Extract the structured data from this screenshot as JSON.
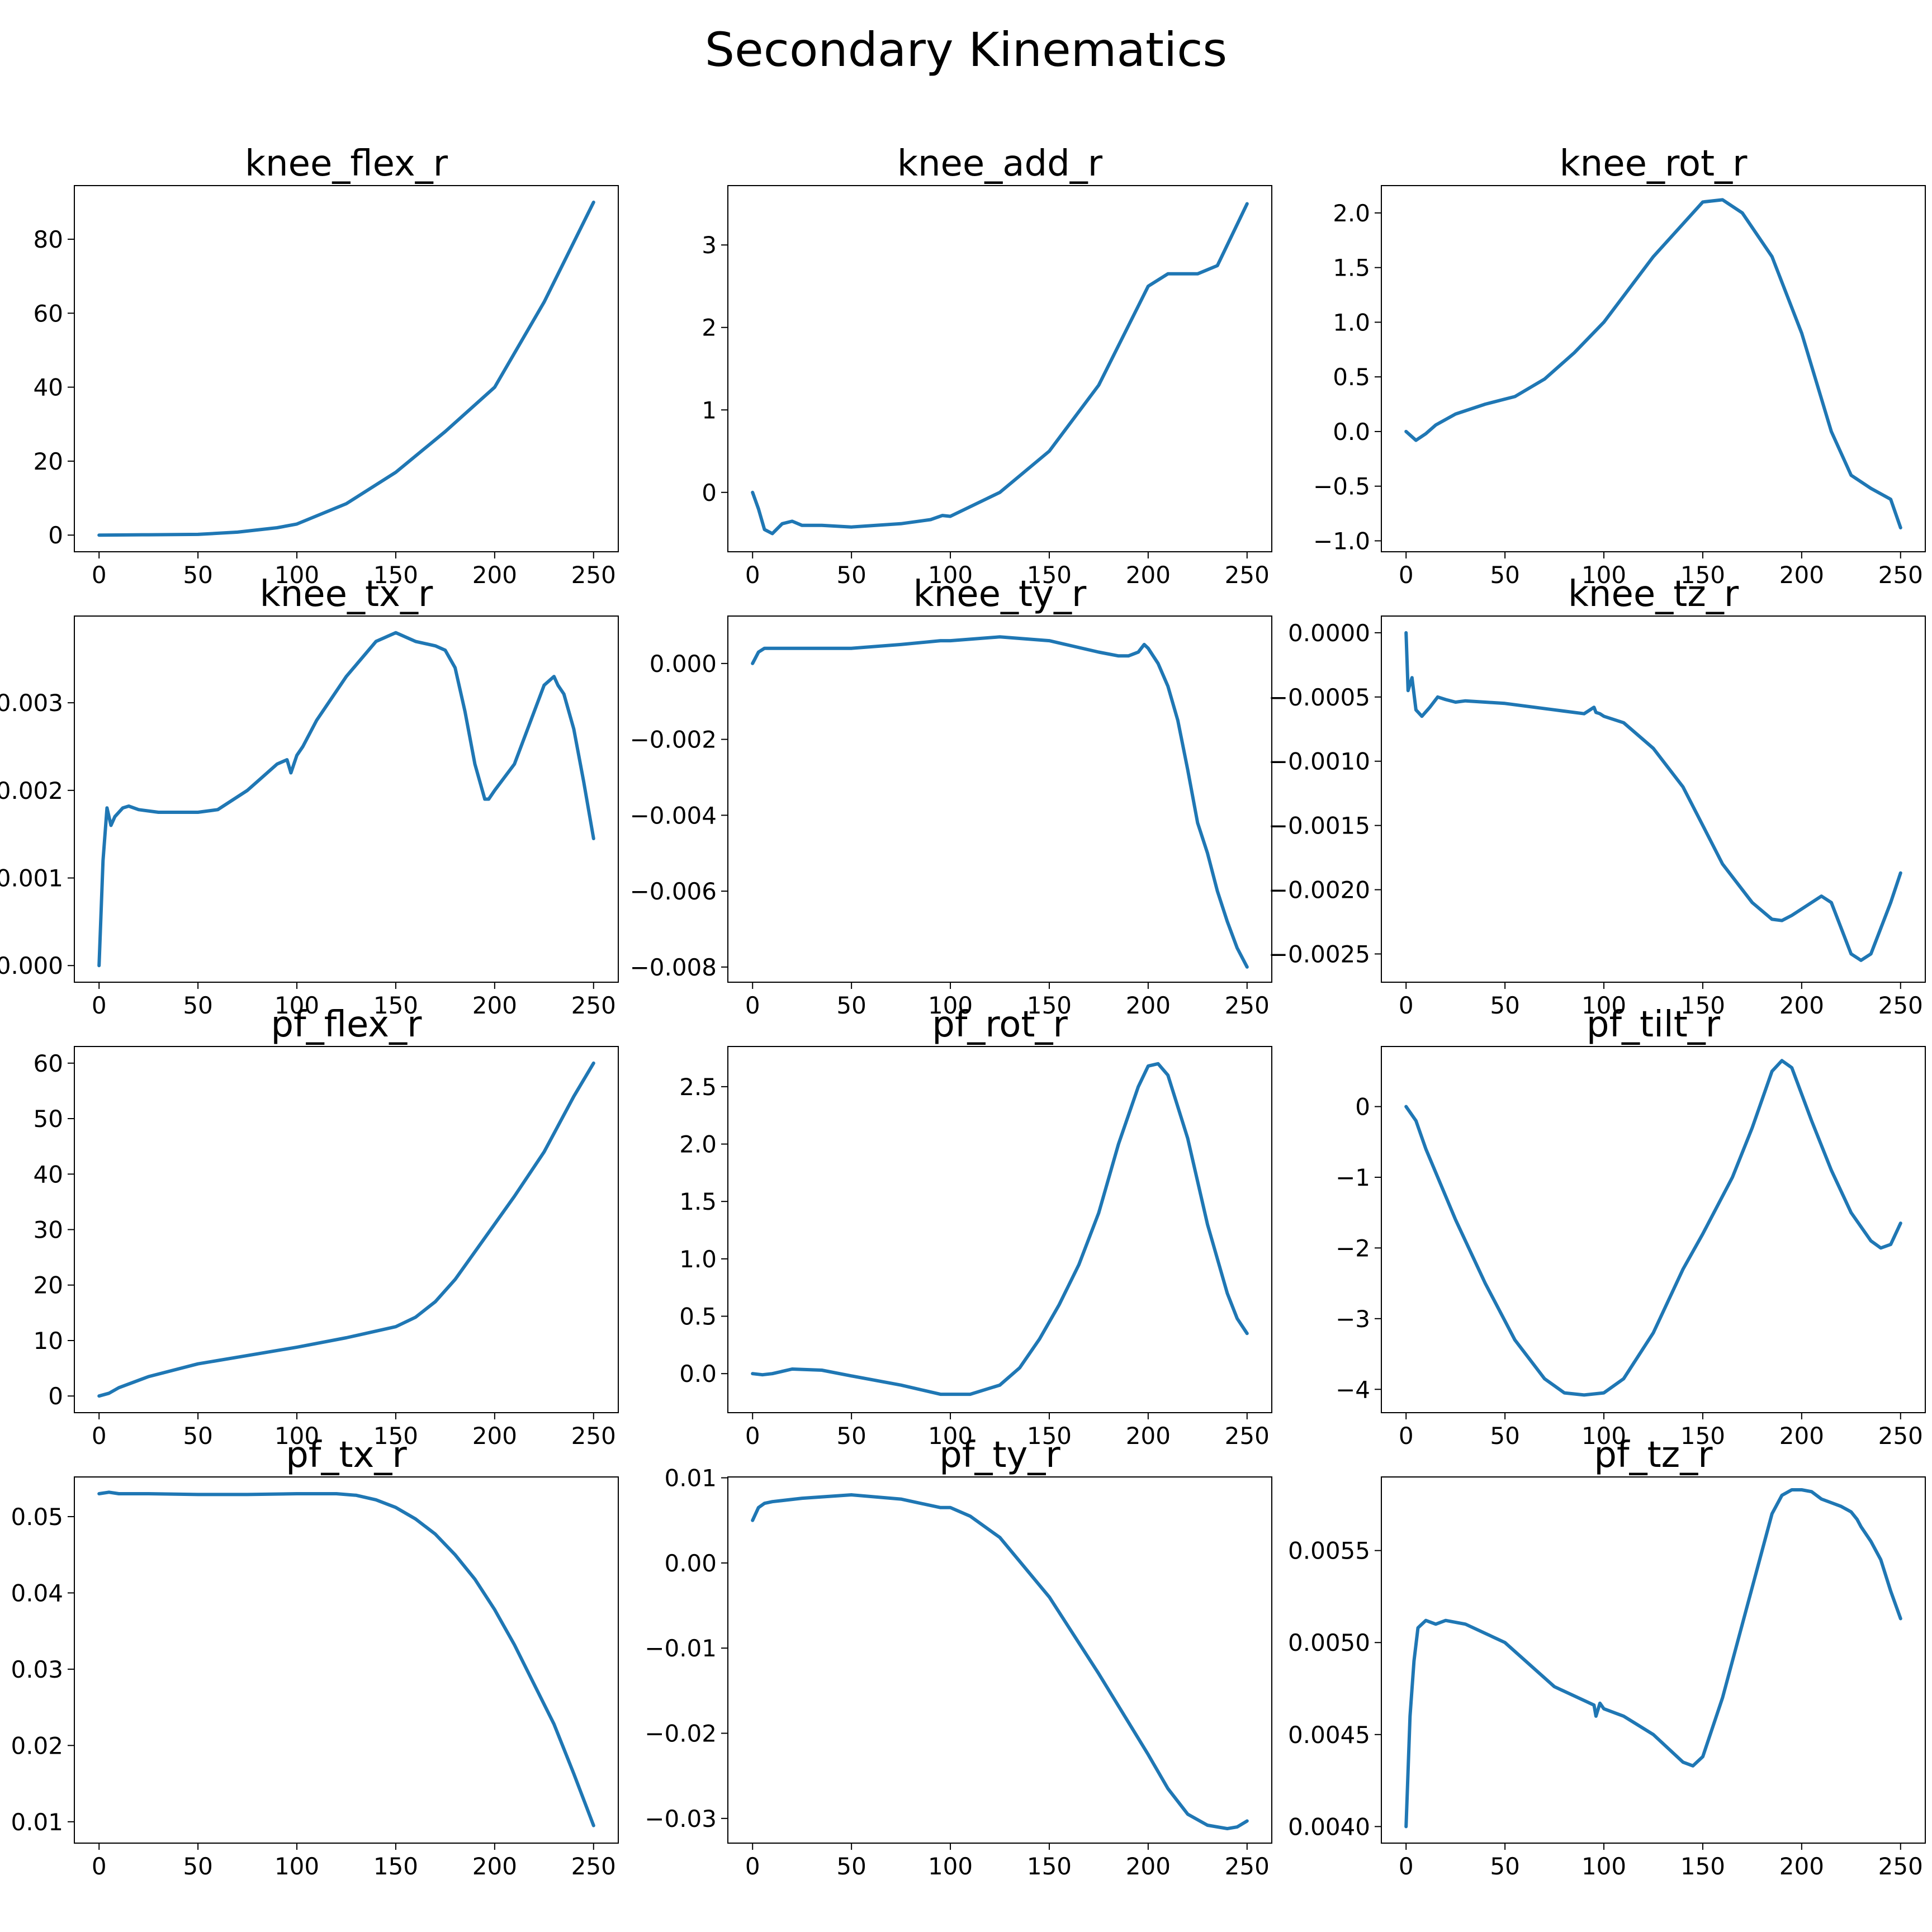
{
  "figure_title": "Secondary Kinematics",
  "line_color": "#1f77b4",
  "chart_data": [
    {
      "type": "line",
      "title": "knee_flex_r",
      "xlabel": "",
      "ylabel": "",
      "xlim": [
        -12.5,
        262.5
      ],
      "ylim": [
        -4.5,
        94.5
      ],
      "xticks": [
        0,
        50,
        100,
        150,
        200,
        250
      ],
      "xtick_labels": [
        "0",
        "50",
        "100",
        "150",
        "200",
        "250"
      ],
      "yticks": [
        0,
        20,
        40,
        60,
        80
      ],
      "ytick_labels": [
        "0",
        "20",
        "40",
        "60",
        "80"
      ],
      "series": [
        {
          "x": [
            0,
            25,
            50,
            70,
            90,
            100,
            125,
            150,
            175,
            200,
            225,
            250
          ],
          "y": [
            0,
            0.1,
            0.2,
            0.8,
            2,
            3,
            8.5,
            17,
            28,
            40,
            63,
            90
          ]
        }
      ]
    },
    {
      "type": "line",
      "title": "knee_add_r",
      "xlabel": "",
      "ylabel": "",
      "xlim": [
        -12.5,
        262.5
      ],
      "ylim": [
        -0.72,
        3.72
      ],
      "xticks": [
        0,
        50,
        100,
        150,
        200,
        250
      ],
      "xtick_labels": [
        "0",
        "50",
        "100",
        "150",
        "200",
        "250"
      ],
      "yticks": [
        0,
        1,
        2,
        3
      ],
      "ytick_labels": [
        "0",
        "1",
        "2",
        "3"
      ],
      "series": [
        {
          "x": [
            0,
            3,
            6,
            10,
            15,
            20,
            25,
            35,
            50,
            75,
            90,
            96,
            100,
            125,
            150,
            175,
            200,
            210,
            225,
            235,
            240,
            250
          ],
          "y": [
            0,
            -0.2,
            -0.45,
            -0.5,
            -0.38,
            -0.35,
            -0.4,
            -0.4,
            -0.42,
            -0.38,
            -0.33,
            -0.28,
            -0.29,
            0,
            0.5,
            1.3,
            2.5,
            2.65,
            2.65,
            2.75,
            3.0,
            3.5
          ]
        }
      ]
    },
    {
      "type": "line",
      "title": "knee_rot_r",
      "xlabel": "",
      "ylabel": "",
      "xlim": [
        -12.5,
        262.5
      ],
      "ylim": [
        -1.1,
        2.25
      ],
      "xticks": [
        0,
        50,
        100,
        150,
        200,
        250
      ],
      "xtick_labels": [
        "0",
        "50",
        "100",
        "150",
        "200",
        "250"
      ],
      "yticks": [
        -1.0,
        -0.5,
        0.0,
        0.5,
        1.0,
        1.5,
        2.0
      ],
      "ytick_labels": [
        "−1.0",
        "−0.5",
        "0.0",
        "0.5",
        "1.0",
        "1.5",
        "2.0"
      ],
      "series": [
        {
          "x": [
            0,
            5,
            10,
            15,
            25,
            40,
            55,
            70,
            85,
            100,
            125,
            150,
            160,
            170,
            185,
            200,
            215,
            225,
            235,
            245,
            250
          ],
          "y": [
            0,
            -0.08,
            -0.02,
            0.06,
            0.16,
            0.25,
            0.32,
            0.48,
            0.72,
            1.0,
            1.6,
            2.1,
            2.12,
            2.0,
            1.6,
            0.9,
            0.0,
            -0.4,
            -0.52,
            -0.62,
            -0.88
          ]
        }
      ]
    },
    {
      "type": "line",
      "title": "knee_tx_r",
      "xlabel": "",
      "ylabel": "",
      "xlim": [
        -12.5,
        262.5
      ],
      "ylim": [
        -0.00019,
        0.00399
      ],
      "xticks": [
        0,
        50,
        100,
        150,
        200,
        250
      ],
      "xtick_labels": [
        "0",
        "50",
        "100",
        "150",
        "200",
        "250"
      ],
      "yticks": [
        0,
        0.001,
        0.002,
        0.003
      ],
      "ytick_labels": [
        "0.000",
        "0.001",
        "0.002",
        "0.003"
      ],
      "series": [
        {
          "x": [
            0,
            2,
            4,
            6,
            8,
            10,
            12,
            15,
            20,
            30,
            50,
            60,
            75,
            90,
            95,
            97,
            100,
            103,
            110,
            125,
            140,
            150,
            160,
            170,
            175,
            180,
            185,
            190,
            195,
            197,
            200,
            210,
            220,
            225,
            230,
            232,
            235,
            240,
            245,
            250
          ],
          "y": [
            0,
            0.0012,
            0.0018,
            0.0016,
            0.0017,
            0.00175,
            0.0018,
            0.00182,
            0.00178,
            0.00175,
            0.00175,
            0.00178,
            0.002,
            0.0023,
            0.00235,
            0.0022,
            0.0024,
            0.0025,
            0.0028,
            0.0033,
            0.0037,
            0.0038,
            0.0037,
            0.00365,
            0.0036,
            0.0034,
            0.0029,
            0.0023,
            0.0019,
            0.0019,
            0.002,
            0.0023,
            0.0029,
            0.0032,
            0.0033,
            0.0032,
            0.0031,
            0.0027,
            0.0021,
            0.00145
          ]
        }
      ]
    },
    {
      "type": "line",
      "title": "knee_ty_r",
      "xlabel": "",
      "ylabel": "",
      "xlim": [
        -12.5,
        262.5
      ],
      "ylim": [
        -0.0084,
        0.00125
      ],
      "xticks": [
        0,
        50,
        100,
        150,
        200,
        250
      ],
      "xtick_labels": [
        "0",
        "50",
        "100",
        "150",
        "200",
        "250"
      ],
      "yticks": [
        -0.008,
        -0.006,
        -0.004,
        -0.002,
        0
      ],
      "ytick_labels": [
        "−0.008",
        "−0.006",
        "−0.004",
        "−0.002",
        "0.000"
      ],
      "series": [
        {
          "x": [
            0,
            3,
            6,
            10,
            20,
            30,
            50,
            75,
            95,
            100,
            125,
            150,
            175,
            185,
            190,
            195,
            198,
            200,
            205,
            210,
            215,
            220,
            225,
            230,
            235,
            240,
            245,
            250
          ],
          "y": [
            0,
            0.0003,
            0.0004,
            0.0004,
            0.0004,
            0.0004,
            0.0004,
            0.0005,
            0.0006,
            0.0006,
            0.0007,
            0.0006,
            0.0003,
            0.0002,
            0.0002,
            0.0003,
            0.0005,
            0.0004,
            0,
            -0.0006,
            -0.0015,
            -0.0028,
            -0.0042,
            -0.005,
            -0.006,
            -0.0068,
            -0.0075,
            -0.008
          ]
        }
      ]
    },
    {
      "type": "line",
      "title": "knee_tz_r",
      "xlabel": "",
      "ylabel": "",
      "xlim": [
        -12.5,
        262.5
      ],
      "ylim": [
        -0.00272,
        0.00013
      ],
      "xticks": [
        0,
        50,
        100,
        150,
        200,
        250
      ],
      "xtick_labels": [
        "0",
        "50",
        "100",
        "150",
        "200",
        "250"
      ],
      "yticks": [
        -0.0025,
        -0.002,
        -0.0015,
        -0.001,
        -0.0005,
        0
      ],
      "ytick_labels": [
        "−0.0025",
        "−0.0020",
        "−0.0015",
        "−0.0010",
        "−0.0005",
        "0.0000"
      ],
      "series": [
        {
          "x": [
            0,
            1,
            3,
            5,
            8,
            12,
            16,
            20,
            25,
            30,
            40,
            50,
            75,
            90,
            95,
            96,
            98,
            100,
            110,
            125,
            140,
            150,
            160,
            175,
            185,
            190,
            195,
            200,
            210,
            215,
            220,
            225,
            230,
            235,
            240,
            245,
            250
          ],
          "y": [
            0,
            -0.00045,
            -0.00035,
            -0.0006,
            -0.00065,
            -0.00058,
            -0.0005,
            -0.00052,
            -0.00054,
            -0.00053,
            -0.00054,
            -0.00055,
            -0.0006,
            -0.00063,
            -0.00058,
            -0.00062,
            -0.00063,
            -0.00065,
            -0.0007,
            -0.0009,
            -0.0012,
            -0.0015,
            -0.0018,
            -0.0021,
            -0.00223,
            -0.00224,
            -0.0022,
            -0.00215,
            -0.00205,
            -0.0021,
            -0.0023,
            -0.0025,
            -0.00255,
            -0.0025,
            -0.0023,
            -0.0021,
            -0.00187
          ]
        }
      ]
    },
    {
      "type": "line",
      "title": "pf_flex_r",
      "xlabel": "",
      "ylabel": "",
      "xlim": [
        -12.5,
        262.5
      ],
      "ylim": [
        -3,
        63
      ],
      "xticks": [
        0,
        50,
        100,
        150,
        200,
        250
      ],
      "xtick_labels": [
        "0",
        "50",
        "100",
        "150",
        "200",
        "250"
      ],
      "yticks": [
        0,
        10,
        20,
        30,
        40,
        50,
        60
      ],
      "ytick_labels": [
        "0",
        "10",
        "20",
        "30",
        "40",
        "50",
        "60"
      ],
      "series": [
        {
          "x": [
            0,
            5,
            10,
            25,
            50,
            75,
            100,
            125,
            150,
            160,
            170,
            180,
            190,
            200,
            210,
            225,
            240,
            250
          ],
          "y": [
            0,
            0.5,
            1.5,
            3.5,
            5.8,
            7.3,
            8.8,
            10.5,
            12.5,
            14.2,
            17,
            21,
            26,
            31,
            36,
            44,
            54,
            60
          ]
        }
      ]
    },
    {
      "type": "line",
      "title": "pf_rot_r",
      "xlabel": "",
      "ylabel": "",
      "xlim": [
        -12.5,
        262.5
      ],
      "ylim": [
        -0.34,
        2.85
      ],
      "xticks": [
        0,
        50,
        100,
        150,
        200,
        250
      ],
      "xtick_labels": [
        "0",
        "50",
        "100",
        "150",
        "200",
        "250"
      ],
      "yticks": [
        0,
        0.5,
        1.0,
        1.5,
        2.0,
        2.5
      ],
      "ytick_labels": [
        "0.0",
        "0.5",
        "1.0",
        "1.5",
        "2.0",
        "2.5"
      ],
      "series": [
        {
          "x": [
            0,
            5,
            10,
            20,
            35,
            50,
            75,
            95,
            110,
            125,
            135,
            145,
            155,
            165,
            175,
            185,
            195,
            200,
            205,
            210,
            220,
            230,
            240,
            245,
            250
          ],
          "y": [
            0,
            -0.01,
            0,
            0.04,
            0.03,
            -0.02,
            -0.1,
            -0.18,
            -0.18,
            -0.1,
            0.05,
            0.3,
            0.6,
            0.95,
            1.4,
            2.0,
            2.5,
            2.68,
            2.7,
            2.6,
            2.05,
            1.3,
            0.7,
            0.48,
            0.35
          ]
        }
      ]
    },
    {
      "type": "line",
      "title": "pf_tilt_r",
      "xlabel": "",
      "ylabel": "",
      "xlim": [
        -12.5,
        262.5
      ],
      "ylim": [
        -4.33,
        0.85
      ],
      "xticks": [
        0,
        50,
        100,
        150,
        200,
        250
      ],
      "xtick_labels": [
        "0",
        "50",
        "100",
        "150",
        "200",
        "250"
      ],
      "yticks": [
        -4,
        -3,
        -2,
        -1,
        0
      ],
      "ytick_labels": [
        "−4",
        "−3",
        "−2",
        "−1",
        "0"
      ],
      "series": [
        {
          "x": [
            0,
            5,
            10,
            25,
            40,
            55,
            70,
            80,
            90,
            100,
            110,
            125,
            140,
            150,
            165,
            175,
            185,
            190,
            195,
            205,
            215,
            225,
            235,
            240,
            245,
            250
          ],
          "y": [
            0,
            -0.2,
            -0.6,
            -1.6,
            -2.5,
            -3.3,
            -3.85,
            -4.05,
            -4.08,
            -4.05,
            -3.85,
            -3.2,
            -2.3,
            -1.8,
            -1.0,
            -0.3,
            0.5,
            0.65,
            0.55,
            -0.2,
            -0.9,
            -1.5,
            -1.9,
            -2.0,
            -1.95,
            -1.65
          ]
        }
      ]
    },
    {
      "type": "line",
      "title": "pf_tx_r",
      "xlabel": "",
      "ylabel": "",
      "xlim": [
        -12.5,
        262.5
      ],
      "ylim": [
        0.0072,
        0.0552
      ],
      "xticks": [
        0,
        50,
        100,
        150,
        200,
        250
      ],
      "xtick_labels": [
        "0",
        "50",
        "100",
        "150",
        "200",
        "250"
      ],
      "yticks": [
        0.01,
        0.02,
        0.03,
        0.04,
        0.05
      ],
      "ytick_labels": [
        "0.01",
        "0.02",
        "0.03",
        "0.04",
        "0.05"
      ],
      "series": [
        {
          "x": [
            0,
            5,
            10,
            25,
            50,
            75,
            100,
            120,
            130,
            140,
            150,
            160,
            170,
            180,
            190,
            200,
            210,
            220,
            230,
            240,
            250
          ],
          "y": [
            0.053,
            0.0532,
            0.053,
            0.053,
            0.0529,
            0.0529,
            0.053,
            0.053,
            0.0528,
            0.0522,
            0.0512,
            0.0497,
            0.0477,
            0.045,
            0.0418,
            0.0378,
            0.0332,
            0.028,
            0.0228,
            0.0163,
            0.0095
          ]
        }
      ]
    },
    {
      "type": "line",
      "title": "pf_ty_r",
      "xlabel": "",
      "ylabel": "",
      "xlim": [
        -12.5,
        262.5
      ],
      "ylim": [
        -0.0329,
        0.0101
      ],
      "xticks": [
        0,
        50,
        100,
        150,
        200,
        250
      ],
      "xtick_labels": [
        "0",
        "50",
        "100",
        "150",
        "200",
        "250"
      ],
      "yticks": [
        -0.03,
        -0.02,
        -0.01,
        0,
        0.01
      ],
      "ytick_labels": [
        "−0.03",
        "−0.02",
        "−0.01",
        "0.00",
        "0.01"
      ],
      "series": [
        {
          "x": [
            0,
            3,
            6,
            10,
            25,
            50,
            75,
            95,
            100,
            110,
            125,
            150,
            175,
            200,
            210,
            220,
            230,
            240,
            245,
            250
          ],
          "y": [
            0.005,
            0.0065,
            0.007,
            0.0072,
            0.0076,
            0.008,
            0.0075,
            0.0065,
            0.0065,
            0.0055,
            0.003,
            -0.004,
            -0.013,
            -0.0225,
            -0.0265,
            -0.0295,
            -0.0308,
            -0.0312,
            -0.031,
            -0.0303
          ]
        }
      ]
    },
    {
      "type": "line",
      "title": "pf_tz_r",
      "xlabel": "",
      "ylabel": "",
      "xlim": [
        -12.5,
        262.5
      ],
      "ylim": [
        0.00391,
        0.0059
      ],
      "xticks": [
        0,
        50,
        100,
        150,
        200,
        250
      ],
      "xtick_labels": [
        "0",
        "50",
        "100",
        "150",
        "200",
        "250"
      ],
      "yticks": [
        0.004,
        0.0045,
        0.005,
        0.0055
      ],
      "ytick_labels": [
        "0.0040",
        "0.0045",
        "0.0050",
        "0.0055"
      ],
      "series": [
        {
          "x": [
            0,
            2,
            4,
            6,
            8,
            10,
            15,
            20,
            30,
            50,
            75,
            95,
            96,
            98,
            100,
            110,
            125,
            140,
            145,
            150,
            160,
            175,
            185,
            190,
            195,
            200,
            205,
            210,
            220,
            225,
            228,
            230,
            235,
            240,
            245,
            250
          ],
          "y": [
            0.004,
            0.0046,
            0.0049,
            0.00508,
            0.0051,
            0.00512,
            0.0051,
            0.00512,
            0.0051,
            0.005,
            0.00476,
            0.00466,
            0.0046,
            0.00467,
            0.00464,
            0.0046,
            0.0045,
            0.00435,
            0.00433,
            0.00438,
            0.0047,
            0.0053,
            0.0057,
            0.0058,
            0.00583,
            0.00583,
            0.00582,
            0.00578,
            0.00574,
            0.00571,
            0.00567,
            0.00563,
            0.00555,
            0.00545,
            0.00528,
            0.00513
          ]
        }
      ]
    }
  ]
}
